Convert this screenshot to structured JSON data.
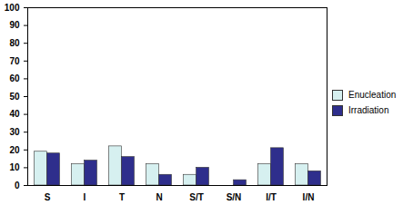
{
  "chart_data": {
    "type": "bar",
    "categories": [
      "S",
      "I",
      "T",
      "N",
      "S/T",
      "S/N",
      "I/T",
      "I/N"
    ],
    "series": [
      {
        "name": "Enucleation",
        "color": "#d6f0f0",
        "values": [
          19,
          12,
          22,
          12,
          6,
          0,
          12,
          12
        ]
      },
      {
        "name": "Irradiation",
        "color": "#2e2e8c",
        "values": [
          18,
          14,
          16,
          6,
          10,
          3,
          21,
          8
        ]
      }
    ],
    "ylim": [
      0,
      100
    ],
    "yticks": [
      0,
      10,
      20,
      30,
      40,
      50,
      60,
      70,
      80,
      90,
      100
    ],
    "grid": false,
    "legend": "right"
  }
}
